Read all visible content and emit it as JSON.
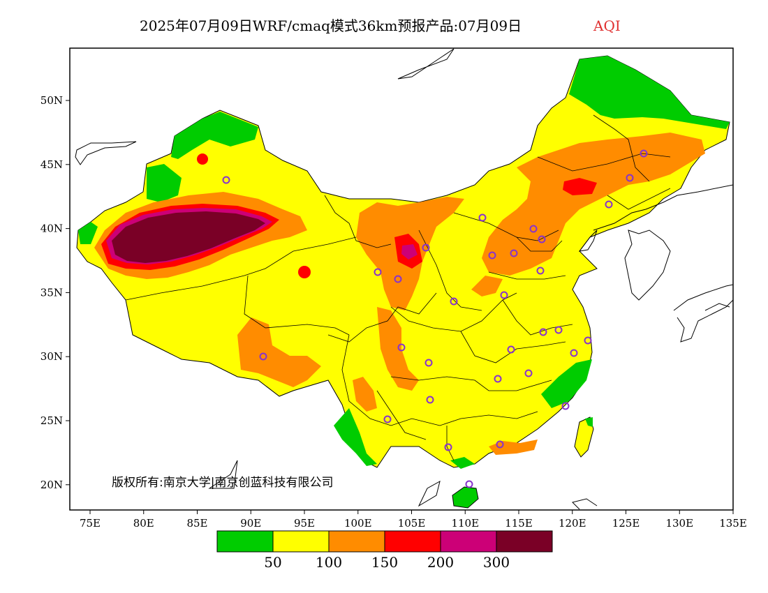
{
  "title": "2025年07月09日WRF/cmaq模式36km预报产品:07月09日",
  "variable": "AQI",
  "copyright": "版权所有:南京大学|南京创蓝科技有限公司",
  "x_ticks": [
    "75E",
    "80E",
    "85E",
    "90E",
    "95E",
    "100E",
    "105E",
    "110E",
    "115E",
    "120E",
    "125E",
    "130E",
    "135E"
  ],
  "y_ticks": [
    "50N",
    "45N",
    "40N",
    "35N",
    "30N",
    "25N",
    "20N"
  ],
  "legend": {
    "colors": [
      "#00cc00",
      "#ffff00",
      "#ff8c00",
      "#ff0000",
      "#cc0077",
      "#7a0026"
    ],
    "labels": [
      "50",
      "100",
      "150",
      "200",
      "300"
    ]
  },
  "colors": {
    "good": "#00cc00",
    "moderate": "#ffff00",
    "sensitive": "#ff8c00",
    "unhealthy": "#ff0000",
    "very_unhealthy": "#cc0077",
    "hazardous": "#7a0026",
    "city_marker": "#8833cc"
  }
}
